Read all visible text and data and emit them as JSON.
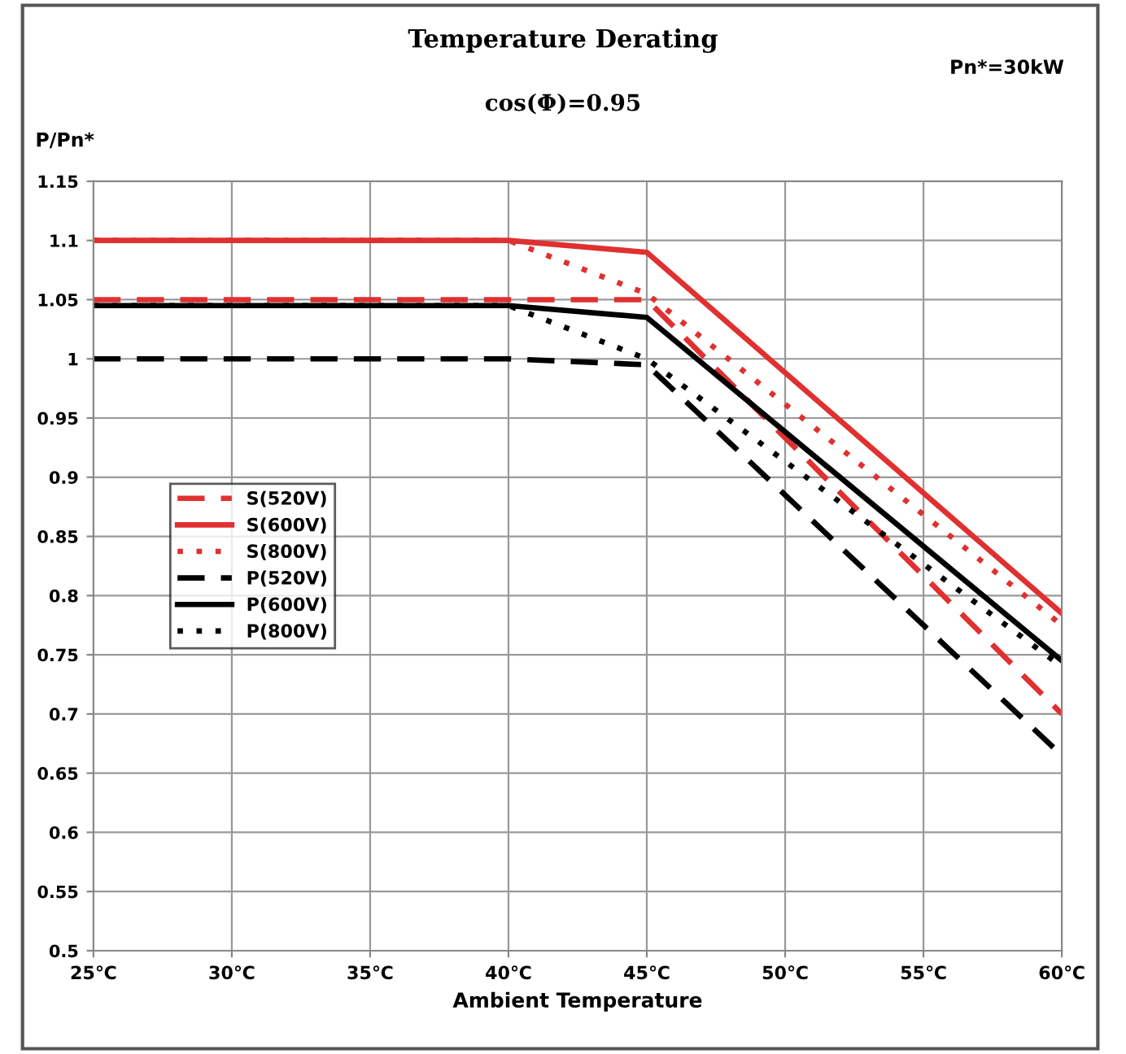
{
  "chart_data": {
    "type": "line",
    "title": "Temperature Derating",
    "subtitle": "cos(Φ)=0.95",
    "ylabel": "P/Pn*",
    "xlabel": "Ambient Temperature",
    "annotations": [
      "Pn*=30kW"
    ],
    "xlim": [
      25,
      60
    ],
    "xticks": [
      {
        "value": 25,
        "label": "25℃"
      },
      {
        "value": 30,
        "label": "30℃"
      },
      {
        "value": 35,
        "label": "35℃"
      },
      {
        "value": 40,
        "label": "40℃"
      },
      {
        "value": 45,
        "label": "45℃"
      },
      {
        "value": 50,
        "label": "50℃"
      },
      {
        "value": 55,
        "label": "55℃"
      },
      {
        "value": 60,
        "label": "60℃"
      }
    ],
    "ylim": [
      0.5,
      1.15
    ],
    "yticks": [
      0.5,
      0.55,
      0.6,
      0.65,
      0.7,
      0.75,
      0.8,
      0.85,
      0.9,
      0.95,
      1,
      1.05,
      1.1,
      1.15
    ],
    "grid": true,
    "legend": "left",
    "marker": "none",
    "series": [
      {
        "name": "S(520V)",
        "color": "#e03030",
        "line_style": "dashed",
        "x": [
          25,
          40,
          45,
          60
        ],
        "values": [
          1.05,
          1.05,
          1.05,
          0.7
        ]
      },
      {
        "name": "S(600V)",
        "color": "#e03030",
        "line_style": "solid",
        "x": [
          25,
          40,
          45,
          60
        ],
        "values": [
          1.1,
          1.1,
          1.09,
          0.785
        ]
      },
      {
        "name": "S(800V)",
        "color": "#e03030",
        "line_style": "dotted",
        "x": [
          25,
          40,
          45,
          60
        ],
        "values": [
          1.1,
          1.1,
          1.055,
          0.775
        ]
      },
      {
        "name": "P(520V)",
        "color": "#000000",
        "line_style": "dashed",
        "x": [
          25,
          40,
          45,
          60
        ],
        "values": [
          1.0,
          1.0,
          0.995,
          0.665
        ]
      },
      {
        "name": "P(600V)",
        "color": "#000000",
        "line_style": "solid",
        "x": [
          25,
          40,
          45,
          60
        ],
        "values": [
          1.045,
          1.045,
          1.035,
          0.745
        ]
      },
      {
        "name": "P(800V)",
        "color": "#000000",
        "line_style": "dotted",
        "x": [
          25,
          40,
          45,
          60
        ],
        "values": [
          1.045,
          1.045,
          1.0,
          0.74
        ]
      }
    ]
  }
}
